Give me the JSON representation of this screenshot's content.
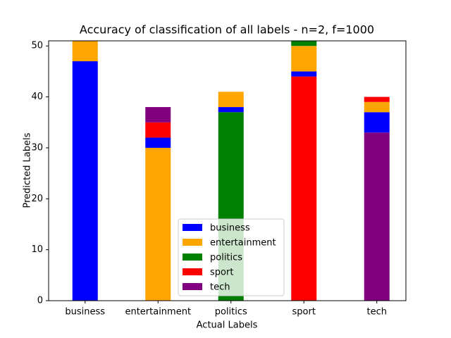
{
  "chart_data": {
    "type": "stacked_bar",
    "title": "Accuracy of classification of all labels - n=2, f=1000",
    "x_label": "Actual Labels",
    "y_label": "Predicted Labels",
    "categories": [
      "business",
      "entertainment",
      "politics",
      "sport",
      "tech"
    ],
    "series": [
      {
        "name": "business",
        "color": "#0000ff",
        "values": [
          47,
          2,
          1,
          1,
          4
        ]
      },
      {
        "name": "entertainment",
        "color": "#ffa500",
        "values": [
          4,
          30,
          3,
          5,
          2
        ]
      },
      {
        "name": "politics",
        "color": "#008000",
        "values": [
          0,
          0,
          37,
          1,
          0
        ]
      },
      {
        "name": "sport",
        "color": "#ff0000",
        "values": [
          0,
          3,
          0,
          44,
          1
        ]
      },
      {
        "name": "tech",
        "color": "#800080",
        "values": [
          0,
          3,
          0,
          0,
          33
        ]
      }
    ],
    "ylim": [
      0,
      51
    ],
    "yticks": [
      0,
      10,
      20,
      30,
      40,
      50
    ],
    "legend": "lower center"
  }
}
